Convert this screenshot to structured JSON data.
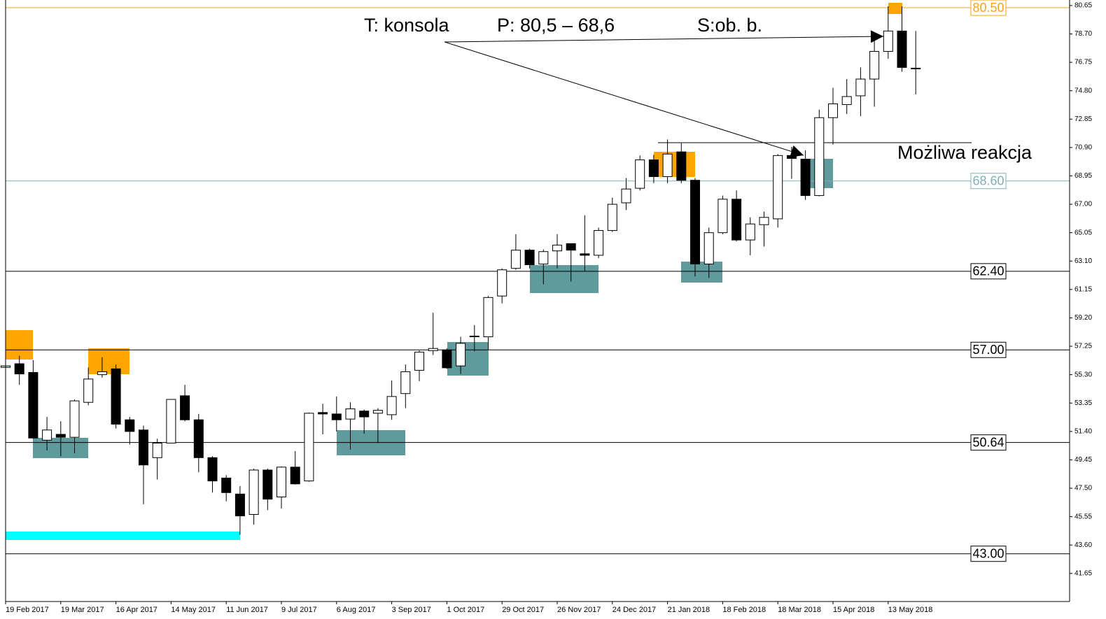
{
  "chart_data": {
    "type": "candlestick",
    "categories": [
      "19 Feb 2017",
      null,
      null,
      null,
      "19 Mar 2017",
      null,
      null,
      null,
      "16 Apr 2017",
      null,
      null,
      null,
      "14 May 2017",
      null,
      null,
      null,
      "11 Jun 2017",
      null,
      null,
      null,
      "9 Jul 2017",
      null,
      null,
      null,
      "6 Aug 2017",
      null,
      null,
      null,
      "3 Sep 2017",
      null,
      null,
      null,
      "1 Oct 2017",
      null,
      null,
      null,
      "29 Oct 2017",
      null,
      null,
      null,
      "26 Nov 2017",
      null,
      null,
      null,
      "24 Dec 2017",
      null,
      null,
      null,
      "21 Jan 2018",
      null,
      null,
      null,
      "18 Feb 2018",
      null,
      null,
      null,
      "18 Mar 2018",
      null,
      null,
      null,
      "15 Apr 2018",
      null,
      null,
      null,
      "13 May 2018",
      null,
      null
    ],
    "open": [
      55.8,
      56.05,
      55.45,
      50.8,
      51.2,
      51.0,
      53.4,
      55.3,
      55.7,
      52.2,
      51.5,
      49.6,
      50.6,
      53.85,
      52.2,
      49.6,
      48.2,
      47.1,
      45.7,
      48.75,
      46.9,
      48.95,
      48.0,
      52.7,
      52.6,
      52.25,
      52.8,
      52.65,
      52.55,
      54.0,
      55.6,
      56.95,
      57.0,
      55.9,
      57.95,
      57.9,
      60.7,
      62.6,
      63.85,
      62.9,
      63.8,
      64.3,
      63.6,
      63.5,
      65.2,
      67.1,
      68.1,
      70.05,
      68.9,
      70.6,
      68.65,
      62.9,
      65.05,
      67.35,
      64.55,
      65.6,
      66.0,
      70.35,
      70.1,
      67.6,
      72.95,
      73.85,
      74.45,
      75.6,
      77.5,
      78.9,
      76.3
    ],
    "high": [
      56.0,
      56.6,
      56.3,
      52.4,
      52.1,
      53.6,
      55.8,
      56.5,
      56.0,
      52.4,
      51.8,
      50.9,
      53.6,
      54.6,
      52.6,
      49.7,
      48.4,
      47.65,
      48.85,
      48.85,
      49.0,
      50.05,
      52.7,
      53.3,
      53.8,
      53.4,
      52.9,
      53.0,
      54.9,
      56.0,
      56.95,
      59.55,
      57.1,
      57.9,
      58.7,
      60.7,
      62.6,
      64.95,
      63.95,
      63.9,
      64.95,
      64.3,
      66.25,
      65.4,
      67.45,
      68.8,
      70.35,
      70.4,
      71.45,
      71.2,
      68.8,
      65.4,
      67.6,
      67.95,
      66.1,
      66.5,
      70.45,
      70.95,
      70.7,
      73.5,
      75.0,
      75.6,
      76.4,
      78.4,
      80.6,
      80.6,
      78.9
    ],
    "low": [
      55.6,
      54.6,
      50.9,
      50.1,
      49.7,
      49.9,
      53.2,
      55.1,
      51.6,
      50.5,
      46.4,
      48.1,
      50.6,
      52.1,
      48.6,
      47.2,
      46.6,
      44.3,
      45.0,
      46.0,
      46.1,
      47.75,
      47.95,
      51.2,
      51.4,
      50.15,
      51.25,
      50.6,
      52.2,
      53.0,
      54.85,
      56.65,
      55.7,
      55.35,
      56.9,
      57.0,
      60.2,
      62.5,
      62.6,
      61.5,
      62.6,
      61.7,
      62.4,
      63.3,
      65.1,
      66.6,
      67.95,
      68.45,
      68.45,
      68.45,
      62.05,
      61.95,
      64.95,
      64.45,
      63.5,
      64.1,
      65.4,
      68.75,
      67.3,
      67.55,
      71.1,
      73.2,
      73.05,
      73.7,
      77.0,
      76.1,
      74.55
    ],
    "close": [
      55.9,
      55.35,
      50.95,
      51.5,
      51.0,
      53.5,
      55.0,
      55.5,
      51.9,
      51.4,
      49.1,
      50.6,
      53.6,
      52.2,
      49.6,
      48.0,
      47.2,
      45.6,
      48.75,
      46.75,
      48.95,
      47.8,
      52.65,
      52.6,
      52.2,
      52.95,
      52.4,
      52.85,
      53.8,
      55.5,
      56.85,
      57.1,
      55.77,
      57.45,
      57.9,
      60.6,
      62.5,
      63.85,
      62.85,
      63.75,
      64.2,
      63.85,
      63.5,
      65.2,
      67.0,
      68.05,
      70.05,
      68.9,
      70.45,
      68.65,
      62.9,
      65.05,
      67.35,
      64.55,
      65.65,
      66.1,
      70.35,
      70.15,
      67.6,
      72.95,
      73.9,
      74.4,
      75.6,
      77.5,
      78.9,
      76.4,
      76.35
    ],
    "up_color": "#ffffff",
    "down_color": "#000000",
    "ylim": [
      39.72,
      81.03
    ],
    "yticks": [
      80.65,
      {
        "value": 78.7,
        "label": "78.70"
      },
      76.75,
      {
        "value": 74.8,
        "label": "74.80"
      },
      72.85,
      {
        "value": 70.9,
        "label": "70.90"
      },
      68.95,
      {
        "value": 67,
        "label": "67.00"
      },
      65.05,
      {
        "value": 63.1,
        "label": "63.10"
      },
      61.15,
      {
        "value": 59.2,
        "label": "59.20"
      },
      57.25,
      {
        "value": 55.3,
        "label": "55.30"
      },
      53.35,
      {
        "value": 51.4,
        "label": "51.40"
      },
      49.45,
      {
        "value": 47.5,
        "label": "47.50"
      },
      45.55,
      {
        "value": 43.6,
        "label": "43.60"
      },
      41.65
    ],
    "levels": [
      {
        "value": 80.5,
        "label": "80.50",
        "color": "#f7a21b"
      },
      {
        "value": 68.6,
        "label": "68.60",
        "color": "#7fb0b3"
      },
      {
        "value": 62.4,
        "label": "62.40",
        "color": "#000000"
      },
      {
        "value": 57,
        "label": "57.00",
        "color": "#000000"
      },
      {
        "value": 50.64,
        "color": "#000000"
      },
      {
        "value": 43,
        "label": "43.00",
        "color": "#000000"
      }
    ],
    "annotations": [
      "T: konsola",
      "P: 80,5 – 68,6",
      "S:ob. b.",
      "Możliwa reakcja"
    ]
  }
}
